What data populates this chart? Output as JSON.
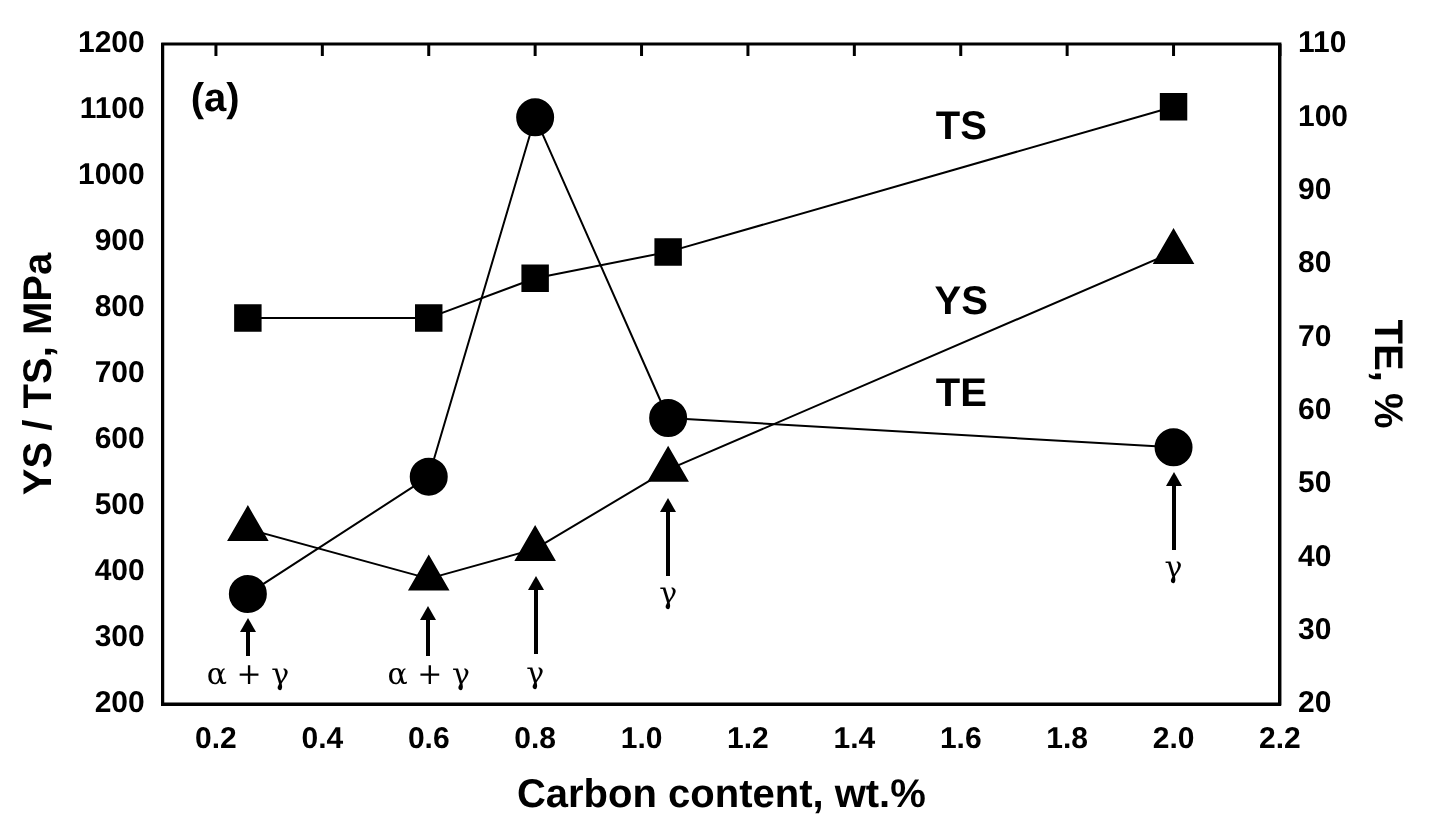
{
  "chart_data": {
    "type": "line",
    "xlabel": "Carbon content, wt.%",
    "ylabel": "YS / TS, MPa",
    "y2label": "TE, %",
    "xlim": [
      0.1,
      2.2
    ],
    "xticks": [
      0.2,
      0.4,
      0.6,
      0.8,
      {
        "value": 1,
        "label": "1.0"
      },
      1.2,
      1.4,
      1.6,
      1.8,
      {
        "value": 2,
        "label": "2.0"
      },
      2.2
    ],
    "ylim": [
      200,
      1200
    ],
    "yticks": [
      200,
      300,
      400,
      500,
      600,
      700,
      800,
      900,
      1000,
      1100,
      1200
    ],
    "y2lim": [
      20,
      110
    ],
    "y2ticks": [
      20,
      30,
      40,
      50,
      60,
      70,
      80,
      90,
      100,
      110
    ],
    "grid": false,
    "legend": false,
    "line_style": "solid",
    "x": [
      0.26,
      0.6,
      0.8,
      1.05,
      2.0
    ],
    "series": [
      {
        "name": "TS",
        "color": "#000000",
        "marker": "square",
        "values": [
          785,
          785,
          845,
          885,
          1105
        ]
      },
      {
        "name": "YS",
        "color": "#000000",
        "marker": "triangle",
        "values": [
          465,
          390,
          435,
          555,
          885
        ]
      },
      {
        "name": "TE",
        "color": "#000000",
        "marker": "circle",
        "axis": "y2",
        "values": [
          35,
          51,
          100,
          59,
          55
        ]
      }
    ],
    "annotations": [
      "(a)",
      "α + γ",
      "α + γ",
      "γ",
      "γ",
      "γ"
    ]
  }
}
